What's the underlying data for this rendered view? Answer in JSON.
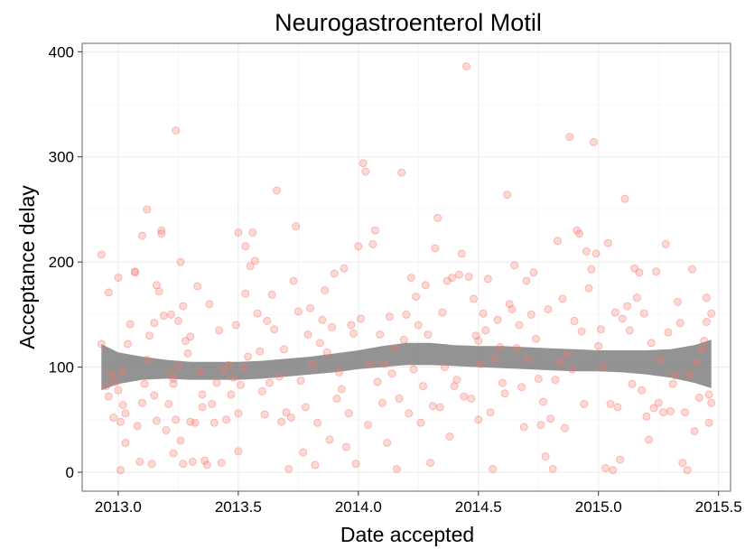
{
  "chart_data": {
    "type": "scatter",
    "title": "Neurogastroenterol Motil",
    "xlabel": "Date accepted",
    "ylabel": "Acceptance delay",
    "xlim": [
      2012.85,
      2015.55
    ],
    "ylim": [
      -18,
      408
    ],
    "x_ticks": [
      2013.0,
      2013.5,
      2014.0,
      2014.5,
      2015.0,
      2015.5
    ],
    "x_tick_labels": [
      "2013.0",
      "2013.5",
      "2014.0",
      "2014.5",
      "2015.0",
      "2015.5"
    ],
    "y_ticks": [
      0,
      100,
      200,
      300,
      400
    ],
    "y_tick_labels": [
      "0",
      "100",
      "200",
      "300",
      "400"
    ],
    "grid": true,
    "legend": "none",
    "point_color": "#f8766d",
    "band_color": "#808080",
    "smooth_band": {
      "x": [
        2012.93,
        2013.0,
        2013.1,
        2013.2,
        2013.3,
        2013.4,
        2013.5,
        2013.6,
        2013.7,
        2013.8,
        2013.9,
        2014.0,
        2014.1,
        2014.2,
        2014.3,
        2014.4,
        2014.5,
        2014.6,
        2014.7,
        2014.8,
        2014.9,
        2015.0,
        2015.1,
        2015.2,
        2015.3,
        2015.4,
        2015.47
      ],
      "lower": [
        78,
        84,
        88,
        89,
        88,
        88,
        88,
        89,
        91,
        93,
        95,
        98,
        100,
        102,
        102,
        101,
        100,
        99,
        98,
        97,
        96,
        96,
        95,
        93,
        90,
        85,
        80
      ],
      "upper": [
        122,
        114,
        110,
        107,
        105,
        105,
        105,
        106,
        108,
        110,
        113,
        116,
        120,
        123,
        123,
        121,
        120,
        120,
        119,
        118,
        117,
        116,
        116,
        116,
        117,
        121,
        126
      ]
    },
    "points": [
      [
        2012.93,
        207
      ],
      [
        2012.93,
        122
      ],
      [
        2012.95,
        82
      ],
      [
        2012.96,
        171
      ],
      [
        2012.96,
        72
      ],
      [
        2012.97,
        93
      ],
      [
        2012.98,
        52
      ],
      [
        2012.99,
        86
      ],
      [
        2013.0,
        78
      ],
      [
        2013.0,
        185
      ],
      [
        2013.01,
        48
      ],
      [
        2013.01,
        2
      ],
      [
        2013.02,
        64
      ],
      [
        2013.02,
        96
      ],
      [
        2013.03,
        28
      ],
      [
        2013.03,
        56
      ],
      [
        2013.04,
        122
      ],
      [
        2013.05,
        141
      ],
      [
        2013.07,
        190
      ],
      [
        2013.07,
        191
      ],
      [
        2013.08,
        44
      ],
      [
        2013.09,
        10
      ],
      [
        2013.1,
        225
      ],
      [
        2013.1,
        66
      ],
      [
        2013.11,
        84
      ],
      [
        2013.12,
        250
      ],
      [
        2013.12,
        107
      ],
      [
        2013.13,
        130
      ],
      [
        2013.14,
        8
      ],
      [
        2013.15,
        73
      ],
      [
        2013.15,
        142
      ],
      [
        2013.16,
        178
      ],
      [
        2013.16,
        49
      ],
      [
        2013.17,
        172
      ],
      [
        2013.18,
        230
      ],
      [
        2013.18,
        227
      ],
      [
        2013.19,
        149
      ],
      [
        2013.2,
        40
      ],
      [
        2013.21,
        65
      ],
      [
        2013.22,
        94
      ],
      [
        2013.22,
        150
      ],
      [
        2013.23,
        18
      ],
      [
        2013.23,
        84
      ],
      [
        2013.23,
        89
      ],
      [
        2013.24,
        325
      ],
      [
        2013.24,
        50
      ],
      [
        2013.25,
        101
      ],
      [
        2013.25,
        144
      ],
      [
        2013.26,
        30
      ],
      [
        2013.26,
        200
      ],
      [
        2013.27,
        158
      ],
      [
        2013.27,
        8
      ],
      [
        2013.28,
        125
      ],
      [
        2013.29,
        113
      ],
      [
        2013.3,
        129
      ],
      [
        2013.3,
        48
      ],
      [
        2013.31,
        10
      ],
      [
        2013.32,
        47
      ],
      [
        2013.33,
        177
      ],
      [
        2013.34,
        96
      ],
      [
        2013.35,
        62
      ],
      [
        2013.35,
        74
      ],
      [
        2013.36,
        11
      ],
      [
        2013.37,
        7
      ],
      [
        2013.38,
        160
      ],
      [
        2013.39,
        65
      ],
      [
        2013.4,
        47
      ],
      [
        2013.41,
        85
      ],
      [
        2013.42,
        135
      ],
      [
        2013.43,
        9
      ],
      [
        2013.44,
        97
      ],
      [
        2013.45,
        50
      ],
      [
        2013.46,
        102
      ],
      [
        2013.47,
        74
      ],
      [
        2013.48,
        90
      ],
      [
        2013.49,
        140
      ],
      [
        2013.5,
        20
      ],
      [
        2013.5,
        56
      ],
      [
        2013.5,
        228
      ],
      [
        2013.51,
        83
      ],
      [
        2013.52,
        100
      ],
      [
        2013.53,
        215
      ],
      [
        2013.53,
        170
      ],
      [
        2013.54,
        110
      ],
      [
        2013.55,
        196
      ],
      [
        2013.56,
        228
      ],
      [
        2013.57,
        201
      ],
      [
        2013.58,
        151
      ],
      [
        2013.59,
        115
      ],
      [
        2013.6,
        77
      ],
      [
        2013.61,
        55
      ],
      [
        2013.62,
        144
      ],
      [
        2013.63,
        85
      ],
      [
        2013.64,
        169
      ],
      [
        2013.65,
        136
      ],
      [
        2013.66,
        268
      ],
      [
        2013.67,
        91
      ],
      [
        2013.68,
        48
      ],
      [
        2013.69,
        117
      ],
      [
        2013.7,
        57
      ],
      [
        2013.71,
        3
      ],
      [
        2013.72,
        52
      ],
      [
        2013.73,
        182
      ],
      [
        2013.74,
        234
      ],
      [
        2013.75,
        153
      ],
      [
        2013.76,
        87
      ],
      [
        2013.77,
        19
      ],
      [
        2013.78,
        62
      ],
      [
        2013.79,
        131
      ],
      [
        2013.8,
        156
      ],
      [
        2013.81,
        103
      ],
      [
        2013.82,
        7
      ],
      [
        2013.83,
        47
      ],
      [
        2013.84,
        123
      ],
      [
        2013.85,
        145
      ],
      [
        2013.86,
        173
      ],
      [
        2013.87,
        114
      ],
      [
        2013.88,
        31
      ],
      [
        2013.89,
        138
      ],
      [
        2013.9,
        189
      ],
      [
        2013.91,
        70
      ],
      [
        2013.92,
        95
      ],
      [
        2013.93,
        79
      ],
      [
        2013.94,
        194
      ],
      [
        2013.95,
        24
      ],
      [
        2013.96,
        56
      ],
      [
        2013.97,
        140
      ],
      [
        2013.98,
        132
      ],
      [
        2013.99,
        8
      ],
      [
        2014.0,
        215
      ],
      [
        2014.01,
        146
      ],
      [
        2014.02,
        294
      ],
      [
        2014.03,
        286
      ],
      [
        2014.04,
        45
      ],
      [
        2014.05,
        103
      ],
      [
        2014.06,
        217
      ],
      [
        2014.07,
        230
      ],
      [
        2014.08,
        86
      ],
      [
        2014.09,
        131
      ],
      [
        2014.1,
        66
      ],
      [
        2014.11,
        103
      ],
      [
        2014.12,
        28
      ],
      [
        2014.13,
        148
      ],
      [
        2014.14,
        94
      ],
      [
        2014.15,
        118
      ],
      [
        2014.16,
        3
      ],
      [
        2014.17,
        70
      ],
      [
        2014.18,
        285
      ],
      [
        2014.19,
        126
      ],
      [
        2014.2,
        150
      ],
      [
        2014.21,
        56
      ],
      [
        2014.22,
        185
      ],
      [
        2014.23,
        98
      ],
      [
        2014.24,
        167
      ],
      [
        2014.25,
        140
      ],
      [
        2014.26,
        47
      ],
      [
        2014.27,
        82
      ],
      [
        2014.28,
        178
      ],
      [
        2014.29,
        131
      ],
      [
        2014.3,
        9
      ],
      [
        2014.31,
        63
      ],
      [
        2014.32,
        213
      ],
      [
        2014.33,
        242
      ],
      [
        2014.34,
        62
      ],
      [
        2014.35,
        152
      ],
      [
        2014.36,
        100
      ],
      [
        2014.37,
        182
      ],
      [
        2014.38,
        34
      ],
      [
        2014.39,
        185
      ],
      [
        2014.4,
        82
      ],
      [
        2014.41,
        88
      ],
      [
        2014.42,
        188
      ],
      [
        2014.43,
        208
      ],
      [
        2014.44,
        72
      ],
      [
        2014.45,
        386
      ],
      [
        2014.46,
        186
      ],
      [
        2014.47,
        70
      ],
      [
        2014.48,
        165
      ],
      [
        2014.49,
        130
      ],
      [
        2014.5,
        125
      ],
      [
        2014.5,
        50
      ],
      [
        2014.51,
        103
      ],
      [
        2014.52,
        151
      ],
      [
        2014.53,
        135
      ],
      [
        2014.54,
        184
      ],
      [
        2014.55,
        57
      ],
      [
        2014.56,
        3
      ],
      [
        2014.57,
        108
      ],
      [
        2014.58,
        145
      ],
      [
        2014.59,
        119
      ],
      [
        2014.6,
        85
      ],
      [
        2014.61,
        75
      ],
      [
        2014.62,
        264
      ],
      [
        2014.63,
        160
      ],
      [
        2014.64,
        155
      ],
      [
        2014.65,
        197
      ],
      [
        2014.66,
        118
      ],
      [
        2014.67,
        140
      ],
      [
        2014.68,
        81
      ],
      [
        2014.69,
        43
      ],
      [
        2014.7,
        182
      ],
      [
        2014.71,
        108
      ],
      [
        2014.72,
        150
      ],
      [
        2014.73,
        190
      ],
      [
        2014.74,
        127
      ],
      [
        2014.75,
        89
      ],
      [
        2014.76,
        45
      ],
      [
        2014.77,
        67
      ],
      [
        2014.78,
        15
      ],
      [
        2014.79,
        155
      ],
      [
        2014.8,
        51
      ],
      [
        2014.81,
        3
      ],
      [
        2014.82,
        88
      ],
      [
        2014.83,
        220
      ],
      [
        2014.84,
        105
      ],
      [
        2014.85,
        165
      ],
      [
        2014.86,
        42
      ],
      [
        2014.87,
        112
      ],
      [
        2014.88,
        319
      ],
      [
        2014.89,
        98
      ],
      [
        2014.9,
        144
      ],
      [
        2014.91,
        230
      ],
      [
        2014.92,
        227
      ],
      [
        2014.93,
        134
      ],
      [
        2014.94,
        65
      ],
      [
        2014.95,
        210
      ],
      [
        2014.96,
        175
      ],
      [
        2014.97,
        193
      ],
      [
        2014.98,
        314
      ],
      [
        2014.99,
        208
      ],
      [
        2015.0,
        120
      ],
      [
        2015.01,
        136
      ],
      [
        2015.02,
        101
      ],
      [
        2015.03,
        4
      ],
      [
        2015.04,
        218
      ],
      [
        2015.05,
        65
      ],
      [
        2015.06,
        2
      ],
      [
        2015.07,
        152
      ],
      [
        2015.08,
        62
      ],
      [
        2015.09,
        12
      ],
      [
        2015.1,
        146
      ],
      [
        2015.11,
        260
      ],
      [
        2015.12,
        158
      ],
      [
        2015.13,
        135
      ],
      [
        2015.14,
        84
      ],
      [
        2015.15,
        194
      ],
      [
        2015.16,
        166
      ],
      [
        2015.17,
        190
      ],
      [
        2015.18,
        78
      ],
      [
        2015.19,
        151
      ],
      [
        2015.2,
        53
      ],
      [
        2015.21,
        31
      ],
      [
        2015.22,
        123
      ],
      [
        2015.23,
        61
      ],
      [
        2015.24,
        191
      ],
      [
        2015.25,
        66
      ],
      [
        2015.26,
        107
      ],
      [
        2015.27,
        57
      ],
      [
        2015.28,
        217
      ],
      [
        2015.29,
        133
      ],
      [
        2015.3,
        58
      ],
      [
        2015.31,
        84
      ],
      [
        2015.32,
        92
      ],
      [
        2015.33,
        162
      ],
      [
        2015.34,
        142
      ],
      [
        2015.35,
        9
      ],
      [
        2015.36,
        57
      ],
      [
        2015.37,
        2
      ],
      [
        2015.38,
        93
      ],
      [
        2015.39,
        193
      ],
      [
        2015.4,
        39
      ],
      [
        2015.41,
        104
      ],
      [
        2015.42,
        71
      ],
      [
        2015.43,
        117
      ],
      [
        2015.44,
        125
      ],
      [
        2015.45,
        166
      ],
      [
        2015.45,
        143
      ],
      [
        2015.46,
        74
      ],
      [
        2015.46,
        47
      ],
      [
        2015.47,
        66
      ],
      [
        2015.47,
        151
      ]
    ]
  }
}
